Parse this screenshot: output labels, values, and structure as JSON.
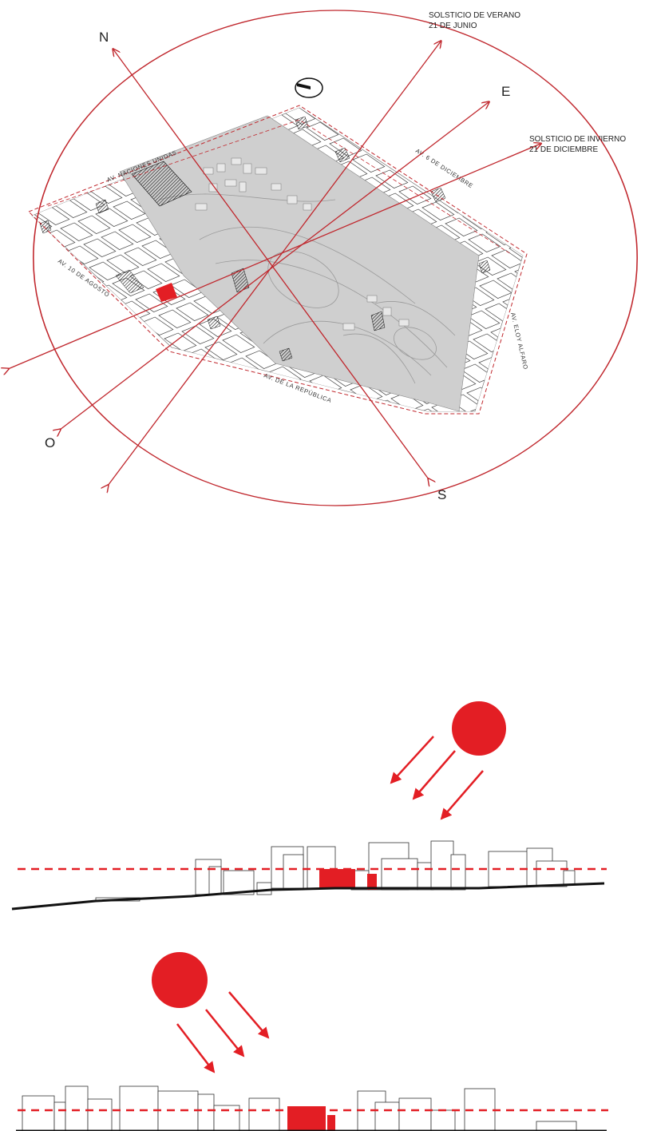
{
  "compass": {
    "north": "N",
    "east": "E",
    "south": "S",
    "west": "O"
  },
  "solstices": {
    "summer_line1": "SOLSTICIO DE VERANO",
    "summer_line2": "21 DE JUNIO",
    "winter_line1": "SOLSTICIO DE INVIERNO",
    "winter_line2": "21 DE DICIEMBRE"
  },
  "streets": {
    "naciones_unidas": "AV. NACIONES UNIDAS",
    "seis_diciembre": "AV. 6 DE DICIEMBRE",
    "diez_agosto": "AV. 10 DE AGOSTO",
    "republica": "AV. DE LA REPÚBLICA",
    "eloy_alfaro": "AV. ELOY ALFARO"
  },
  "colors": {
    "accent_red": "#e31e24",
    "line_red": "#c0272d",
    "park_gray": "#cfcfcf",
    "ink": "#1a1a1a"
  }
}
